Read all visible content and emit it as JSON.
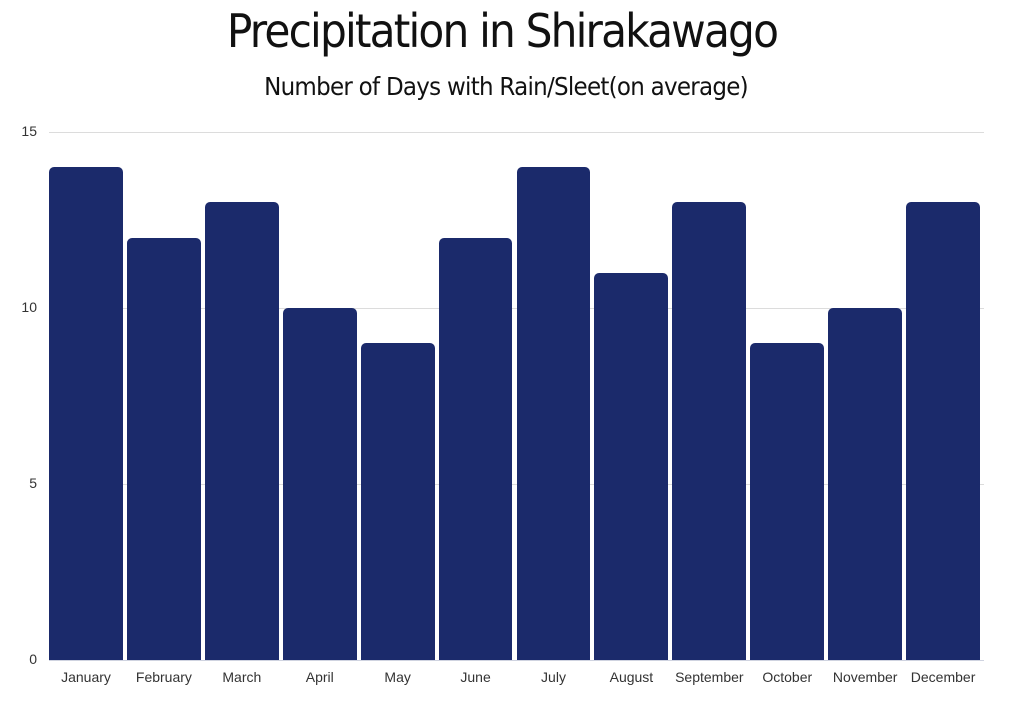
{
  "header": {
    "title": "Precipitation in Shirakawago",
    "subtitle": "Number of Days with Rain/Sleet(on average)"
  },
  "colors": {
    "bar": "#1b2a6b",
    "grid": "#dcdcdc",
    "background": "#ffffff"
  },
  "chart_data": {
    "type": "bar",
    "title": "Precipitation in Shirakawago",
    "subtitle": "Number of Days with Rain/Sleet(on average)",
    "xlabel": "",
    "ylabel": "",
    "categories": [
      "January",
      "February",
      "March",
      "April",
      "May",
      "June",
      "July",
      "August",
      "September",
      "October",
      "November",
      "December"
    ],
    "values": [
      14,
      12,
      13,
      10,
      9,
      12,
      14,
      11,
      13,
      9,
      10,
      13
    ],
    "ylim": [
      0,
      15
    ],
    "yticks": [
      "0",
      "5",
      "10",
      "15"
    ],
    "grid": true,
    "legend": null
  }
}
